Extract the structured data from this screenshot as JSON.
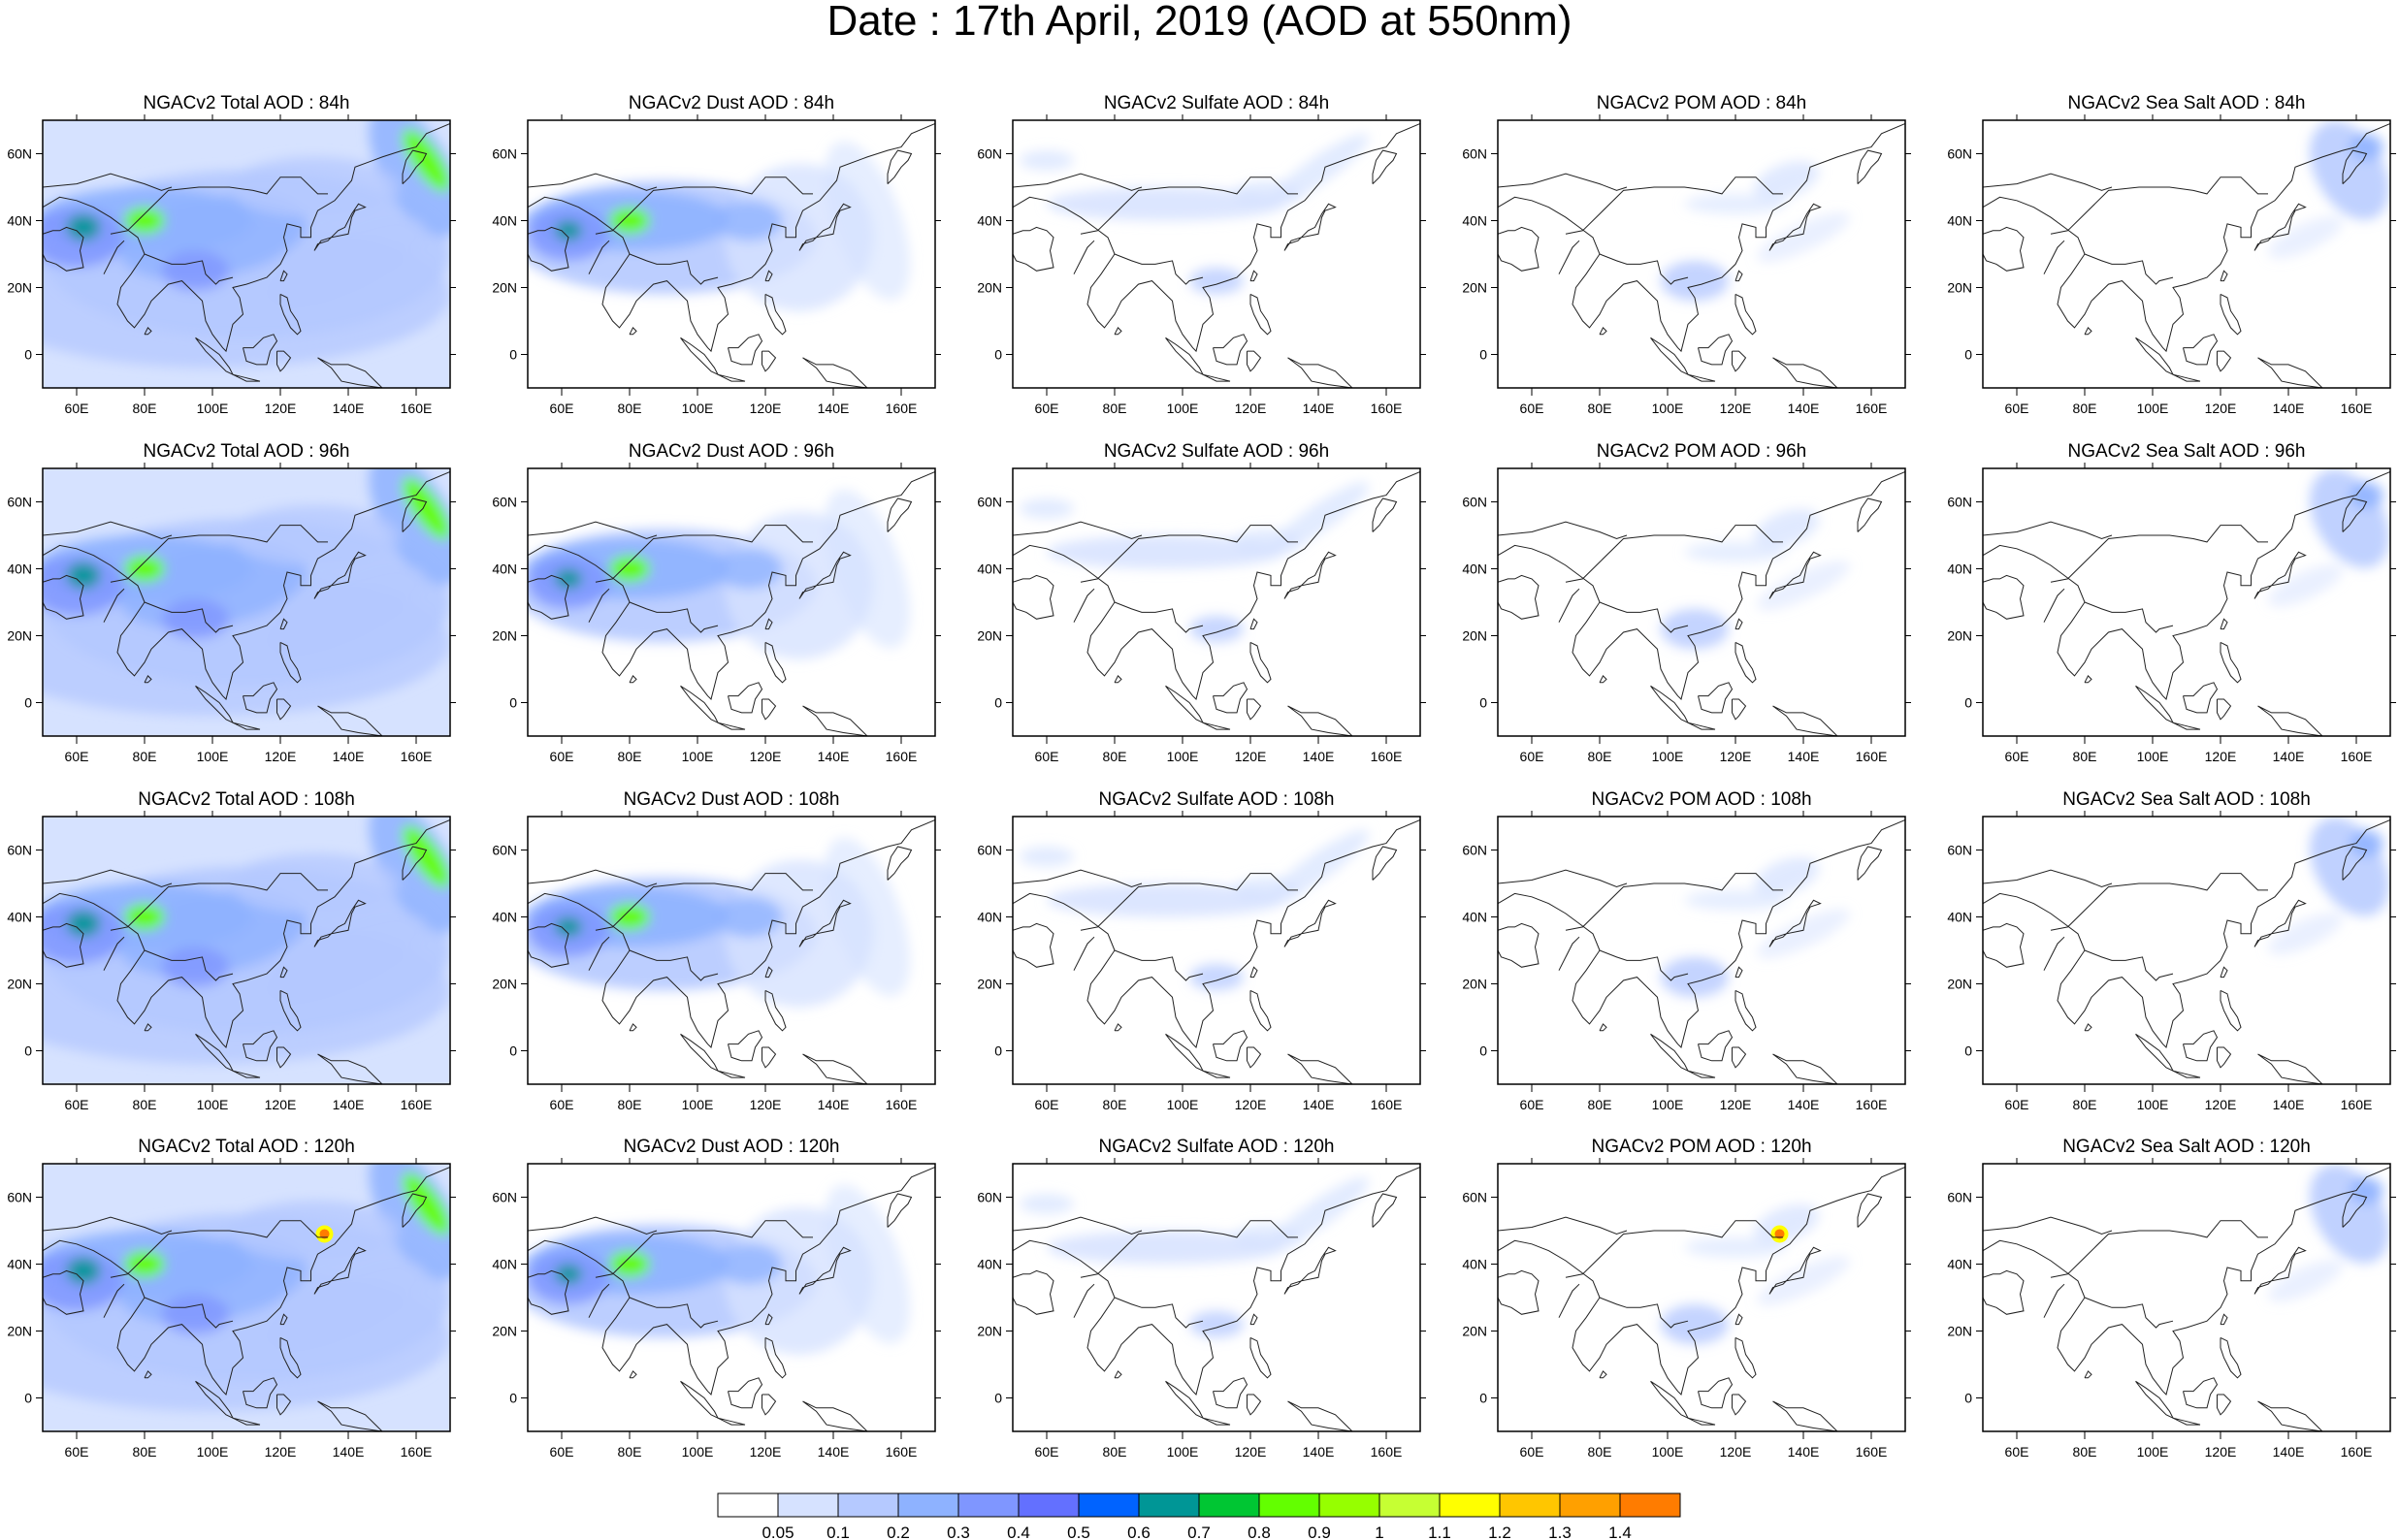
{
  "title": "Date : 17th April, 2019 (AOD at 550nm)",
  "lon_labels": [
    "60E",
    "80E",
    "100E",
    "120E",
    "140E",
    "160E"
  ],
  "lon_values": [
    60,
    80,
    100,
    120,
    140,
    160
  ],
  "lat_labels": [
    "60N",
    "40N",
    "20N",
    "0"
  ],
  "lat_values": [
    60,
    40,
    20,
    0
  ],
  "map_extent": {
    "lon_min": 50,
    "lon_max": 170,
    "lat_min": -10,
    "lat_max": 70
  },
  "colorbar": {
    "labels": [
      "0.05",
      "0.1",
      "0.2",
      "0.3",
      "0.4",
      "0.5",
      "0.6",
      "0.7",
      "0.8",
      "0.9",
      "1",
      "1.1",
      "1.2",
      "1.3",
      "1.4"
    ],
    "colors": [
      "#ffffff",
      "#d6e2ff",
      "#b5c9ff",
      "#8eb2ff",
      "#7f96ff",
      "#6370ff",
      "#0063ff",
      "#009696",
      "#00c633",
      "#63ff00",
      "#96ff00",
      "#c6ff33",
      "#ffff00",
      "#ffc600",
      "#ffa000",
      "#ff7c00",
      "#ff1900"
    ]
  },
  "panels": [
    [
      {
        "title": "NGACv2 Total AOD : 84h",
        "type": "total"
      },
      {
        "title": "NGACv2 Dust AOD : 84h",
        "type": "dust"
      },
      {
        "title": "NGACv2 Sulfate AOD : 84h",
        "type": "sulfate"
      },
      {
        "title": "NGACv2 POM AOD : 84h",
        "type": "pom"
      },
      {
        "title": "NGACv2 Sea Salt AOD : 84h",
        "type": "seasalt"
      }
    ],
    [
      {
        "title": "NGACv2 Total AOD : 96h",
        "type": "total"
      },
      {
        "title": "NGACv2 Dust AOD : 96h",
        "type": "dust"
      },
      {
        "title": "NGACv2 Sulfate AOD : 96h",
        "type": "sulfate"
      },
      {
        "title": "NGACv2 POM AOD : 96h",
        "type": "pom"
      },
      {
        "title": "NGACv2 Sea Salt AOD : 96h",
        "type": "seasalt"
      }
    ],
    [
      {
        "title": "NGACv2 Total AOD : 108h",
        "type": "total"
      },
      {
        "title": "NGACv2 Dust AOD : 108h",
        "type": "dust"
      },
      {
        "title": "NGACv2 Sulfate AOD : 108h",
        "type": "sulfate"
      },
      {
        "title": "NGACv2 POM AOD : 108h",
        "type": "pom"
      },
      {
        "title": "NGACv2 Sea Salt AOD : 108h",
        "type": "seasalt"
      }
    ],
    [
      {
        "title": "NGACv2 Total AOD : 120h",
        "type": "total"
      },
      {
        "title": "NGACv2 Dust AOD : 120h",
        "type": "dust"
      },
      {
        "title": "NGACv2 Sulfate AOD : 120h",
        "type": "sulfate"
      },
      {
        "title": "NGACv2 POM AOD : 120h",
        "type": "pom"
      },
      {
        "title": "NGACv2 Sea Salt  AOD : 120h",
        "type": "seasalt"
      }
    ]
  ]
}
